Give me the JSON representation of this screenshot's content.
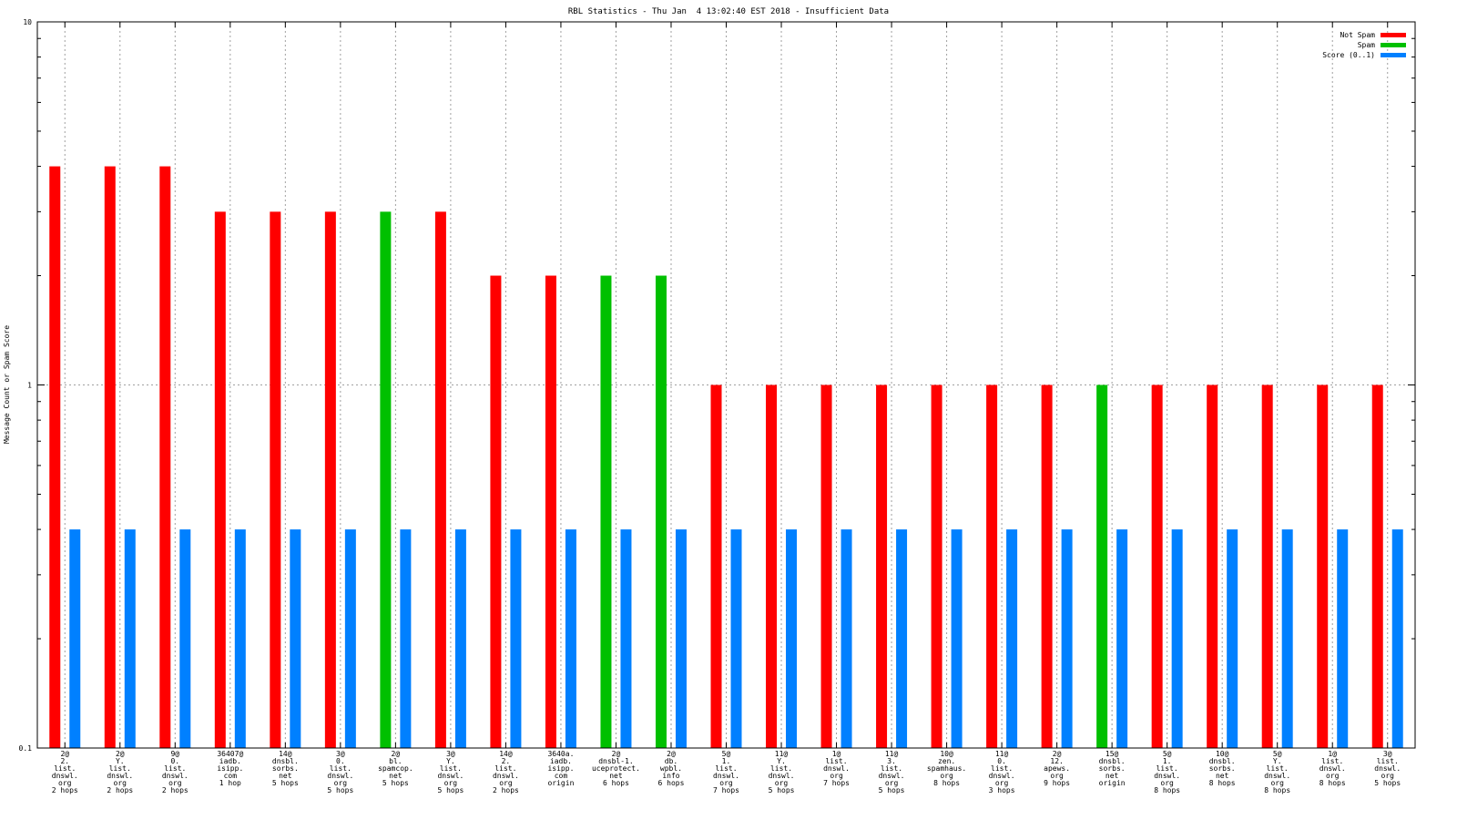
{
  "chart_data": {
    "type": "bar",
    "title": "RBL Statistics - Thu Jan  4 13:02:40 EST 2018 - Insufficient Data",
    "ylabel": "Message Count or Spam Score",
    "xlabel": "",
    "yscale": "log",
    "ylim": [
      0.1,
      10
    ],
    "yticks": [
      {
        "value": 0.1,
        "label": "0.1"
      },
      {
        "value": 1,
        "label": "1"
      },
      {
        "value": 10,
        "label": "10"
      }
    ],
    "grid": true,
    "legend_position": "top-right",
    "categories": [
      [
        "2@",
        "2.",
        "list.",
        "dnswl.",
        "org",
        "2 hops"
      ],
      [
        "2@",
        "Y.",
        "list.",
        "dnswl.",
        "org",
        "2 hops"
      ],
      [
        "9@",
        "0.",
        "list.",
        "dnswl.",
        "org",
        "2 hops"
      ],
      [
        "36407@",
        "iadb.",
        "isipp.",
        "com",
        "1 hop"
      ],
      [
        "14@",
        "dnsbl.",
        "sorbs.",
        "net",
        "5 hops"
      ],
      [
        "3@",
        "0.",
        "list.",
        "dnswl.",
        "org",
        "5 hops"
      ],
      [
        "2@",
        "bl.",
        "spamcop.",
        "net",
        "5 hops"
      ],
      [
        "3@",
        "Y.",
        "list.",
        "dnswl.",
        "org",
        "5 hops"
      ],
      [
        "14@",
        "2.",
        "list.",
        "dnswl.",
        "org",
        "2 hops"
      ],
      [
        "3640a.",
        "iadb.",
        "isipp.",
        "com",
        "origin"
      ],
      [
        "2@",
        "dnsbl-1.",
        "uceprotect.",
        "net",
        "6 hops"
      ],
      [
        "2@",
        "db.",
        "wpbl.",
        "info",
        "6 hops"
      ],
      [
        "5@",
        "1.",
        "list.",
        "dnswl.",
        "org",
        "7 hops"
      ],
      [
        "11@",
        "Y.",
        "list.",
        "dnswl.",
        "org",
        "5 hops"
      ],
      [
        "1@",
        "list.",
        "dnswl.",
        "org",
        "7 hops"
      ],
      [
        "11@",
        "3.",
        "list.",
        "dnswl.",
        "org",
        "5 hops"
      ],
      [
        "10@",
        "zen.",
        "spamhaus.",
        "org",
        "8 hops"
      ],
      [
        "11@",
        "0.",
        "list.",
        "dnswl.",
        "org",
        "3 hops"
      ],
      [
        "2@",
        "12.",
        "apews.",
        "org",
        "9 hops"
      ],
      [
        "15@",
        "dnsbl.",
        "sorbs.",
        "net",
        "origin"
      ],
      [
        "5@",
        "1.",
        "list.",
        "dnswl.",
        "org",
        "8 hops"
      ],
      [
        "10@",
        "dnsbl.",
        "sorbs.",
        "net",
        "8 hops"
      ],
      [
        "5@",
        "Y.",
        "list.",
        "dnswl.",
        "org",
        "8 hops"
      ],
      [
        "1@",
        "list.",
        "dnswl.",
        "org",
        "8 hops"
      ],
      [
        "3@",
        "list.",
        "dnswl.",
        "org",
        "5 hops"
      ]
    ],
    "series": [
      {
        "name": "Not Spam",
        "color": "#ff0000",
        "values": [
          4,
          4,
          4,
          3,
          3,
          3,
          null,
          3,
          2,
          2,
          null,
          null,
          1,
          1,
          1,
          1,
          1,
          1,
          1,
          null,
          1,
          1,
          1,
          1,
          1
        ]
      },
      {
        "name": "Spam",
        "color": "#00c000",
        "values": [
          null,
          null,
          null,
          null,
          null,
          null,
          3,
          null,
          null,
          null,
          2,
          2,
          null,
          null,
          null,
          null,
          null,
          null,
          null,
          1,
          null,
          null,
          null,
          null,
          null
        ]
      },
      {
        "name": "Score (0..1)",
        "color": "#0080ff",
        "values": [
          0.4,
          0.4,
          0.4,
          0.4,
          0.4,
          0.4,
          0.4,
          0.4,
          0.4,
          0.4,
          0.4,
          0.4,
          0.4,
          0.4,
          0.4,
          0.4,
          0.4,
          0.4,
          0.4,
          0.4,
          0.4,
          0.4,
          0.4,
          0.4,
          0.4
        ]
      }
    ]
  }
}
